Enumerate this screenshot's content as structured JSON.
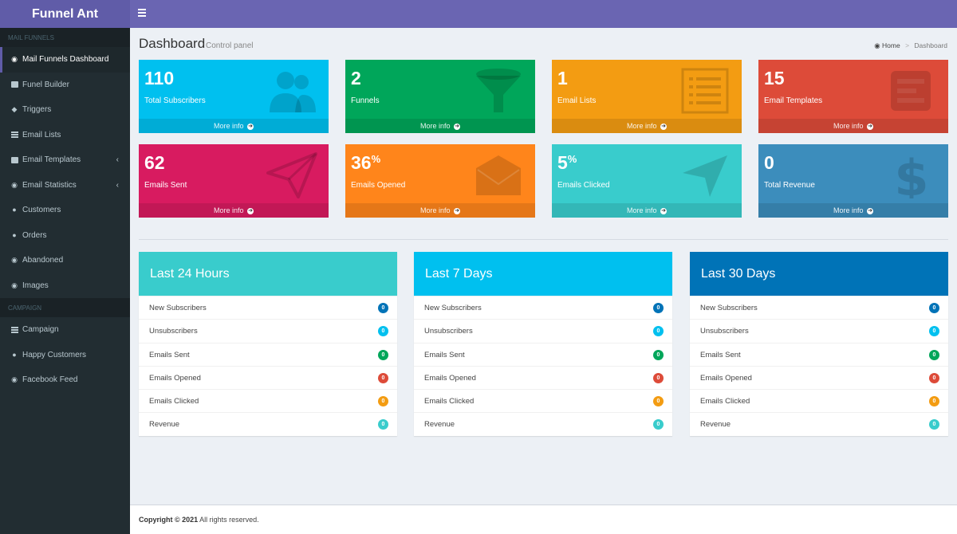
{
  "app": {
    "title": "Funnel Ant"
  },
  "sidebar": {
    "section1": "MAIL FUNNELS",
    "items1": [
      {
        "label": "Mail Funnels Dashboard",
        "icon": "dashboard-icon",
        "active": true
      },
      {
        "label": "Funel Builder",
        "icon": "edit-icon"
      },
      {
        "label": "Triggers",
        "icon": "tags-icon"
      },
      {
        "label": "Email Lists",
        "icon": "list-icon"
      },
      {
        "label": "Email Templates",
        "icon": "envelope-icon",
        "chevron": true
      },
      {
        "label": "Email Statistics",
        "icon": "chart-icon",
        "chevron": true
      },
      {
        "label": "Customers",
        "icon": "users-icon"
      },
      {
        "label": "Orders",
        "icon": "users-icon"
      },
      {
        "label": "Abandoned",
        "icon": "dashboard-icon"
      },
      {
        "label": "Images",
        "icon": "camera-icon"
      }
    ],
    "section2": "CAMPAIGN",
    "items2": [
      {
        "label": "Campaign",
        "icon": "list-icon"
      },
      {
        "label": "Happy Customers",
        "icon": "users-icon"
      },
      {
        "label": "Facebook Feed",
        "icon": "dashboard-icon"
      }
    ]
  },
  "header": {
    "title": "Dashboard",
    "subtitle": "Control panel"
  },
  "breadcrumb": {
    "home": "Home",
    "separator": ">",
    "current": "Dashboard"
  },
  "stats": [
    {
      "value": "110",
      "suffix": "",
      "label": "Total Subscribers",
      "more": "More info",
      "color": "#00c0ef",
      "icon": "users-icon"
    },
    {
      "value": "2",
      "suffix": "",
      "label": "Funnels",
      "more": "More info",
      "color": "#00a65a",
      "icon": "funnel-icon"
    },
    {
      "value": "1",
      "suffix": "",
      "label": "Email Lists",
      "more": "More info",
      "color": "#f39c12",
      "icon": "list-alt-icon"
    },
    {
      "value": "15",
      "suffix": "",
      "label": "Email Templates",
      "more": "More info",
      "color": "#dd4b39",
      "icon": "template-icon"
    },
    {
      "value": "62",
      "suffix": "",
      "label": "Emails Sent",
      "more": "More info",
      "color": "#d81b60",
      "icon": "paper-plane-icon"
    },
    {
      "value": "36",
      "suffix": "%",
      "label": "Emails Opened",
      "more": "More info",
      "color": "#ff851b",
      "icon": "envelope-icon"
    },
    {
      "value": "5",
      "suffix": "%",
      "label": "Emails Clicked",
      "more": "More info",
      "color": "#39cccc",
      "icon": "location-arrow-icon"
    },
    {
      "value": "0",
      "suffix": "",
      "label": "Total Revenue",
      "more": "More info",
      "color": "#3c8dbc",
      "icon": "dollar-icon"
    }
  ],
  "periods": [
    {
      "title": "Last 24 Hours",
      "color": "#39cccc",
      "rows": [
        {
          "label": "New Subscribers",
          "value": "0",
          "color": "#0073b7"
        },
        {
          "label": "Unsubscribers",
          "value": "0",
          "color": "#00c0ef"
        },
        {
          "label": "Emails Sent",
          "value": "0",
          "color": "#00a65a"
        },
        {
          "label": "Emails Opened",
          "value": "0",
          "color": "#dd4b39"
        },
        {
          "label": "Emails Clicked",
          "value": "0",
          "color": "#f39c12"
        },
        {
          "label": "Revenue",
          "value": "0",
          "color": "#39cccc"
        }
      ]
    },
    {
      "title": "Last 7 Days",
      "color": "#00c0ef",
      "rows": [
        {
          "label": "New Subscribers",
          "value": "0",
          "color": "#0073b7"
        },
        {
          "label": "Unsubscribers",
          "value": "0",
          "color": "#00c0ef"
        },
        {
          "label": "Emails Sent",
          "value": "0",
          "color": "#00a65a"
        },
        {
          "label": "Emails Opened",
          "value": "0",
          "color": "#dd4b39"
        },
        {
          "label": "Emails Clicked",
          "value": "0",
          "color": "#f39c12"
        },
        {
          "label": "Revenue",
          "value": "0",
          "color": "#39cccc"
        }
      ]
    },
    {
      "title": "Last 30 Days",
      "color": "#0073b7",
      "rows": [
        {
          "label": "New Subscribers",
          "value": "0",
          "color": "#0073b7"
        },
        {
          "label": "Unsubscribers",
          "value": "0",
          "color": "#00c0ef"
        },
        {
          "label": "Emails Sent",
          "value": "0",
          "color": "#00a65a"
        },
        {
          "label": "Emails Opened",
          "value": "0",
          "color": "#dd4b39"
        },
        {
          "label": "Emails Clicked",
          "value": "0",
          "color": "#f39c12"
        },
        {
          "label": "Revenue",
          "value": "0",
          "color": "#39cccc"
        }
      ]
    }
  ],
  "footer": {
    "copyright": "Copyright © 2021",
    "rights": " All rights reserved."
  }
}
